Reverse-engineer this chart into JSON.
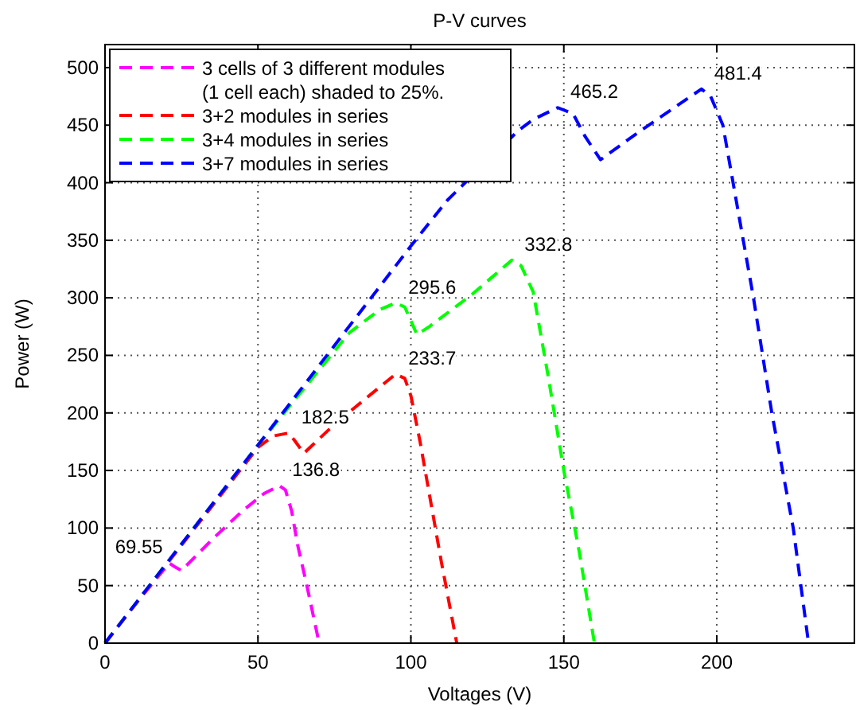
{
  "chart_data": {
    "type": "line",
    "title": "P-V curves",
    "xlabel": "Voltages (V)",
    "ylabel": "Power (W)",
    "xlim": [
      0,
      245
    ],
    "ylim": [
      0,
      520
    ],
    "xticks": [
      0,
      50,
      100,
      150,
      200
    ],
    "yticks": [
      0,
      50,
      100,
      150,
      200,
      250,
      300,
      350,
      400,
      450,
      500
    ],
    "grid": true,
    "legend": "top left",
    "line_style": "dashed",
    "marker": "none",
    "series": [
      {
        "name": "3 cells of 3 different modules (1 cell each) shaded to 25%.",
        "color": "#ff00ff",
        "x": [
          0,
          10,
          21,
          23,
          25,
          35,
          45,
          52,
          57,
          59,
          61,
          63,
          66,
          68,
          70
        ],
        "values": [
          0,
          34,
          69.55,
          66,
          63,
          90,
          115,
          130,
          136.8,
          133,
          115,
          85,
          50,
          25,
          0
        ]
      },
      {
        "name": "3+2 modules in series",
        "color": "#ff0000",
        "x": [
          0,
          50,
          55,
          60,
          62,
          65,
          75,
          85,
          95,
          98,
          100,
          103,
          106,
          110,
          115
        ],
        "values": [
          0,
          170,
          180,
          182.5,
          176,
          165,
          190,
          212,
          233.7,
          230,
          215,
          175,
          130,
          70,
          0
        ]
      },
      {
        "name": "3+4 modules in series",
        "color": "#00ff00",
        "x": [
          0,
          50,
          80,
          90,
          95,
          98,
          100,
          102,
          106,
          120,
          133,
          136,
          140,
          145,
          150,
          155,
          160
        ],
        "values": [
          0,
          172,
          270,
          290,
          295.6,
          292,
          280,
          268,
          275,
          303,
          332.8,
          328,
          305,
          230,
          150,
          80,
          0
        ]
      },
      {
        "name": "3+7 modules in series",
        "color": "#0000ff",
        "x": [
          0,
          50,
          100,
          112,
          135,
          140,
          148,
          153,
          157,
          162,
          175,
          195,
          198,
          202,
          206,
          212,
          218,
          225,
          230
        ],
        "values": [
          0,
          172,
          345,
          385,
          445,
          455,
          465.2,
          460,
          440,
          420,
          445,
          481.4,
          475,
          450,
          390,
          300,
          200,
          100,
          0
        ]
      }
    ],
    "annotations": [
      {
        "text": "69.55",
        "x": 21,
        "y": 69.55
      },
      {
        "text": "136.8",
        "x": 57,
        "y": 136.8
      },
      {
        "text": "182.5",
        "x": 60,
        "y": 182.5
      },
      {
        "text": "233.7",
        "x": 95,
        "y": 233.7
      },
      {
        "text": "295.6",
        "x": 95,
        "y": 295.6
      },
      {
        "text": "332.8",
        "x": 133,
        "y": 332.8
      },
      {
        "text": "465.2",
        "x": 148,
        "y": 465.2
      },
      {
        "text": "481.4",
        "x": 195,
        "y": 481.4
      }
    ]
  }
}
